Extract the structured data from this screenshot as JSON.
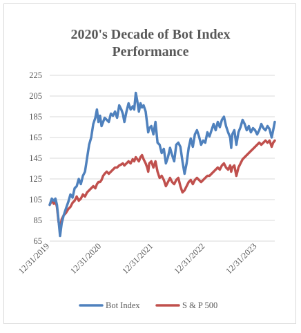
{
  "chart_data": {
    "type": "line",
    "title_lines": [
      "2020's Decade of Bot Index",
      "Performance"
    ],
    "xlabel": "",
    "ylabel": "",
    "ylim": [
      65,
      225
    ],
    "y_ticks": [
      "225",
      "205",
      "185",
      "165",
      "145",
      "125",
      "105",
      "85",
      "65"
    ],
    "x_ticks": [
      "12/31/2019",
      "12/31/2020",
      "12/31/2021",
      "12/31/2022",
      "12/31/2023"
    ],
    "grid": "horizontal",
    "legend_position": "bottom",
    "series": [
      {
        "name": "Bot Index",
        "color": "#4f81bd",
        "points": [
          [
            0.0,
            100
          ],
          [
            0.04,
            106
          ],
          [
            0.08,
            104
          ],
          [
            0.11,
            106
          ],
          [
            0.14,
            100
          ],
          [
            0.17,
            85
          ],
          [
            0.2,
            70
          ],
          [
            0.23,
            82
          ],
          [
            0.27,
            90
          ],
          [
            0.31,
            96
          ],
          [
            0.36,
            103
          ],
          [
            0.4,
            110
          ],
          [
            0.44,
            107
          ],
          [
            0.48,
            116
          ],
          [
            0.52,
            118
          ],
          [
            0.56,
            125
          ],
          [
            0.6,
            120
          ],
          [
            0.64,
            128
          ],
          [
            0.68,
            132
          ],
          [
            0.72,
            145
          ],
          [
            0.76,
            158
          ],
          [
            0.8,
            165
          ],
          [
            0.84,
            178
          ],
          [
            0.88,
            184
          ],
          [
            0.91,
            192
          ],
          [
            0.94,
            180
          ],
          [
            0.97,
            186
          ],
          [
            1.0,
            176
          ],
          [
            1.03,
            180
          ],
          [
            1.06,
            184
          ],
          [
            1.1,
            182
          ],
          [
            1.14,
            180
          ],
          [
            1.18,
            188
          ],
          [
            1.22,
            186
          ],
          [
            1.26,
            190
          ],
          [
            1.3,
            184
          ],
          [
            1.34,
            196
          ],
          [
            1.38,
            192
          ],
          [
            1.41,
            188
          ],
          [
            1.44,
            180
          ],
          [
            1.48,
            190
          ],
          [
            1.52,
            198
          ],
          [
            1.56,
            192
          ],
          [
            1.6,
            195
          ],
          [
            1.63,
            192
          ],
          [
            1.66,
            208
          ],
          [
            1.69,
            200
          ],
          [
            1.72,
            190
          ],
          [
            1.75,
            198
          ],
          [
            1.78,
            194
          ],
          [
            1.81,
            196
          ],
          [
            1.85,
            190
          ],
          [
            1.88,
            178
          ],
          [
            1.9,
            170
          ],
          [
            1.92,
            174
          ],
          [
            1.96,
            176
          ],
          [
            2.0,
            168
          ],
          [
            2.04,
            180
          ],
          [
            2.08,
            160
          ],
          [
            2.12,
            158
          ],
          [
            2.16,
            150
          ],
          [
            2.2,
            154
          ],
          [
            2.24,
            140
          ],
          [
            2.28,
            146
          ],
          [
            2.32,
            155
          ],
          [
            2.36,
            148
          ],
          [
            2.4,
            142
          ],
          [
            2.44,
            158
          ],
          [
            2.48,
            160
          ],
          [
            2.52,
            156
          ],
          [
            2.56,
            142
          ],
          [
            2.6,
            130
          ],
          [
            2.64,
            140
          ],
          [
            2.68,
            155
          ],
          [
            2.72,
            164
          ],
          [
            2.76,
            156
          ],
          [
            2.8,
            168
          ],
          [
            2.84,
            172
          ],
          [
            2.88,
            166
          ],
          [
            2.92,
            158
          ],
          [
            2.96,
            162
          ],
          [
            3.0,
            160
          ],
          [
            3.04,
            170
          ],
          [
            3.08,
            166
          ],
          [
            3.12,
            172
          ],
          [
            3.16,
            178
          ],
          [
            3.2,
            172
          ],
          [
            3.24,
            180
          ],
          [
            3.28,
            175
          ],
          [
            3.32,
            182
          ],
          [
            3.36,
            185
          ],
          [
            3.4,
            176
          ],
          [
            3.44,
            170
          ],
          [
            3.48,
            165
          ],
          [
            3.5,
            155
          ],
          [
            3.52,
            168
          ],
          [
            3.56,
            172
          ],
          [
            3.6,
            158
          ],
          [
            3.64,
            170
          ],
          [
            3.68,
            175
          ],
          [
            3.72,
            182
          ],
          [
            3.76,
            178
          ],
          [
            3.8,
            172
          ],
          [
            3.84,
            176
          ],
          [
            3.88,
            170
          ],
          [
            3.92,
            174
          ],
          [
            3.96,
            172
          ],
          [
            4.0,
            168
          ],
          [
            4.04,
            172
          ],
          [
            4.08,
            178
          ],
          [
            4.12,
            174
          ],
          [
            4.16,
            172
          ],
          [
            4.2,
            176
          ],
          [
            4.24,
            173
          ],
          [
            4.28,
            165
          ],
          [
            4.31,
            172
          ],
          [
            4.34,
            180
          ]
        ]
      },
      {
        "name": "S & P 500",
        "color": "#c0504d",
        "points": [
          [
            0.0,
            100
          ],
          [
            0.04,
            104
          ],
          [
            0.08,
            101
          ],
          [
            0.11,
            104
          ],
          [
            0.14,
            98
          ],
          [
            0.17,
            84
          ],
          [
            0.2,
            76
          ],
          [
            0.23,
            86
          ],
          [
            0.27,
            90
          ],
          [
            0.31,
            92
          ],
          [
            0.36,
            96
          ],
          [
            0.4,
            98
          ],
          [
            0.44,
            102
          ],
          [
            0.48,
            104
          ],
          [
            0.52,
            108
          ],
          [
            0.56,
            104
          ],
          [
            0.6,
            106
          ],
          [
            0.64,
            110
          ],
          [
            0.68,
            108
          ],
          [
            0.72,
            112
          ],
          [
            0.76,
            114
          ],
          [
            0.8,
            116
          ],
          [
            0.84,
            118
          ],
          [
            0.88,
            116
          ],
          [
            0.91,
            120
          ],
          [
            0.94,
            122
          ],
          [
            0.97,
            122
          ],
          [
            1.0,
            124
          ],
          [
            1.03,
            128
          ],
          [
            1.06,
            130
          ],
          [
            1.1,
            132
          ],
          [
            1.14,
            130
          ],
          [
            1.18,
            132
          ],
          [
            1.22,
            134
          ],
          [
            1.26,
            136
          ],
          [
            1.3,
            136
          ],
          [
            1.34,
            138
          ],
          [
            1.38,
            139
          ],
          [
            1.41,
            140
          ],
          [
            1.44,
            138
          ],
          [
            1.48,
            140
          ],
          [
            1.52,
            142
          ],
          [
            1.56,
            140
          ],
          [
            1.6,
            144
          ],
          [
            1.63,
            142
          ],
          [
            1.66,
            146
          ],
          [
            1.69,
            144
          ],
          [
            1.72,
            142
          ],
          [
            1.75,
            146
          ],
          [
            1.78,
            148
          ],
          [
            1.81,
            144
          ],
          [
            1.85,
            140
          ],
          [
            1.88,
            136
          ],
          [
            1.9,
            132
          ],
          [
            1.92,
            140
          ],
          [
            1.96,
            142
          ],
          [
            2.0,
            136
          ],
          [
            2.04,
            142
          ],
          [
            2.08,
            132
          ],
          [
            2.12,
            126
          ],
          [
            2.16,
            128
          ],
          [
            2.2,
            124
          ],
          [
            2.24,
            118
          ],
          [
            2.28,
            122
          ],
          [
            2.32,
            126
          ],
          [
            2.36,
            122
          ],
          [
            2.4,
            120
          ],
          [
            2.44,
            124
          ],
          [
            2.48,
            126
          ],
          [
            2.52,
            118
          ],
          [
            2.56,
            112
          ],
          [
            2.6,
            114
          ],
          [
            2.64,
            118
          ],
          [
            2.68,
            122
          ],
          [
            2.72,
            124
          ],
          [
            2.76,
            120
          ],
          [
            2.8,
            124
          ],
          [
            2.84,
            126
          ],
          [
            2.88,
            124
          ],
          [
            2.92,
            122
          ],
          [
            2.96,
            124
          ],
          [
            3.0,
            126
          ],
          [
            3.04,
            128
          ],
          [
            3.08,
            128
          ],
          [
            3.12,
            130
          ],
          [
            3.16,
            132
          ],
          [
            3.2,
            134
          ],
          [
            3.24,
            136
          ],
          [
            3.28,
            134
          ],
          [
            3.32,
            138
          ],
          [
            3.36,
            140
          ],
          [
            3.4,
            136
          ],
          [
            3.44,
            134
          ],
          [
            3.48,
            138
          ],
          [
            3.5,
            132
          ],
          [
            3.52,
            136
          ],
          [
            3.56,
            138
          ],
          [
            3.6,
            128
          ],
          [
            3.64,
            136
          ],
          [
            3.68,
            140
          ],
          [
            3.72,
            144
          ],
          [
            3.76,
            146
          ],
          [
            3.8,
            148
          ],
          [
            3.84,
            150
          ],
          [
            3.88,
            152
          ],
          [
            3.92,
            154
          ],
          [
            3.96,
            156
          ],
          [
            4.0,
            158
          ],
          [
            4.04,
            160
          ],
          [
            4.08,
            158
          ],
          [
            4.12,
            160
          ],
          [
            4.16,
            162
          ],
          [
            4.2,
            160
          ],
          [
            4.24,
            162
          ],
          [
            4.28,
            156
          ],
          [
            4.31,
            160
          ],
          [
            4.34,
            162
          ]
        ]
      }
    ]
  }
}
